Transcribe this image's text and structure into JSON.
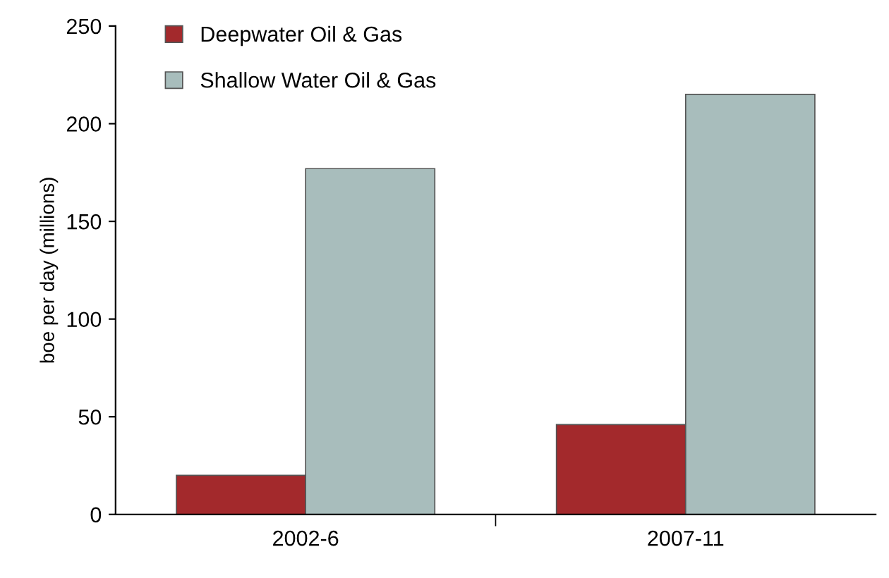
{
  "chart_data": {
    "type": "bar",
    "ylabel": "boe per day (millions)",
    "categories": [
      "2002-6",
      "2007-11"
    ],
    "series": [
      {
        "name": "Deepwater Oil & Gas",
        "color": "#a3292c",
        "values": [
          20,
          46
        ]
      },
      {
        "name": "Shallow Water Oil & Gas",
        "color": "#a8bdbc",
        "values": [
          177,
          215
        ]
      }
    ],
    "ylim": [
      0,
      250
    ],
    "yticks": [
      0,
      50,
      100,
      150,
      200,
      250
    ],
    "grid": false,
    "legend": "top left"
  }
}
